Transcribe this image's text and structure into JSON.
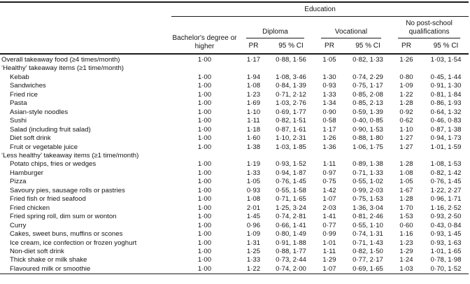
{
  "table": {
    "spanner": "Education",
    "col_groups": [
      {
        "label": "Bachelor's degree or higher"
      },
      {
        "label": "Diploma",
        "sub": [
          "PR",
          "95 % CI"
        ]
      },
      {
        "label": "Vocational",
        "sub": [
          "PR",
          "95 % CI"
        ]
      },
      {
        "label": "No post-school qualifications",
        "sub": [
          "PR",
          "95 % CI"
        ]
      }
    ],
    "rows": [
      {
        "label": "Overall takeaway food (≥4 times/month)",
        "indent": 0,
        "section": false,
        "cells": [
          "1·00",
          "1·17",
          "0·88, 1·56",
          "1·05",
          "0·82, 1·33",
          "1·26",
          "1·03, 1·54"
        ]
      },
      {
        "label": "‘Healthy’ takeaway items (≥1 time/month)",
        "indent": 0,
        "section": true,
        "cells": []
      },
      {
        "label": "Kebab",
        "indent": 1,
        "section": false,
        "cells": [
          "1·00",
          "1·94",
          "1·08, 3·46",
          "1·30",
          "0·74, 2·29",
          "0·80",
          "0·45, 1·44"
        ]
      },
      {
        "label": "Sandwiches",
        "indent": 1,
        "section": false,
        "cells": [
          "1·00",
          "1·08",
          "0·84, 1·39",
          "0·93",
          "0·75, 1·17",
          "1·09",
          "0·91, 1·30"
        ]
      },
      {
        "label": "Fried rice",
        "indent": 1,
        "section": false,
        "cells": [
          "1·00",
          "1·23",
          "0·71, 2·12",
          "1·33",
          "0·85, 2·08",
          "1·22",
          "0·81, 1·84"
        ]
      },
      {
        "label": "Pasta",
        "indent": 1,
        "section": false,
        "cells": [
          "1·00",
          "1·69",
          "1·03, 2·76",
          "1·34",
          "0·85, 2·13",
          "1·28",
          "0·86, 1·93"
        ]
      },
      {
        "label": "Asian-style noodles",
        "indent": 1,
        "section": false,
        "cells": [
          "1·00",
          "1·10",
          "0·69, 1·77",
          "0·90",
          "0·59, 1·39",
          "0·92",
          "0·64, 1·32"
        ]
      },
      {
        "label": "Sushi",
        "indent": 1,
        "section": false,
        "cells": [
          "1·00",
          "1·11",
          "0·82, 1·51",
          "0·58",
          "0·40, 0·85",
          "0·62",
          "0·46, 0·83"
        ]
      },
      {
        "label": "Salad (including fruit salad)",
        "indent": 1,
        "section": false,
        "cells": [
          "1·00",
          "1·18",
          "0·87, 1·61",
          "1·17",
          "0·90, 1·53",
          "1·10",
          "0·87, 1·38"
        ]
      },
      {
        "label": "Diet soft drink",
        "indent": 1,
        "section": false,
        "cells": [
          "1·00",
          "1·60",
          "1·10, 2·31",
          "1·26",
          "0·88, 1·80",
          "1·27",
          "0·94, 1·73"
        ]
      },
      {
        "label": "Fruit or vegetable juice",
        "indent": 1,
        "section": false,
        "cells": [
          "1·00",
          "1·38",
          "1·03, 1·85",
          "1·36",
          "1·06, 1·75",
          "1·27",
          "1·01, 1·59"
        ]
      },
      {
        "label": "‘Less healthy’ takeaway items (≥1 time/month)",
        "indent": 0,
        "section": true,
        "cells": []
      },
      {
        "label": "Potato chips, fries or wedges",
        "indent": 1,
        "section": false,
        "cells": [
          "1·00",
          "1·19",
          "0·93, 1·52",
          "1·11",
          "0·89, 1·38",
          "1·28",
          "1·08, 1·53"
        ]
      },
      {
        "label": "Hamburger",
        "indent": 1,
        "section": false,
        "cells": [
          "1·00",
          "1·33",
          "0·94, 1·87",
          "0·97",
          "0·71, 1·33",
          "1·08",
          "0·82, 1·42"
        ]
      },
      {
        "label": "Pizza",
        "indent": 1,
        "section": false,
        "cells": [
          "1·00",
          "1·05",
          "0·76, 1·45",
          "0·75",
          "0·55, 1·02",
          "1·05",
          "0·76, 1·45"
        ]
      },
      {
        "label": "Savoury pies, sausage rolls or pastries",
        "indent": 1,
        "section": false,
        "cells": [
          "1·00",
          "0·93",
          "0·55, 1·58",
          "1·42",
          "0·99, 2·03",
          "1·67",
          "1·22, 2·27"
        ]
      },
      {
        "label": "Fried fish or fried seafood",
        "indent": 1,
        "section": false,
        "cells": [
          "1·00",
          "1·08",
          "0·71, 1·65",
          "1·07",
          "0·75, 1·53",
          "1·28",
          "0·96, 1·71"
        ]
      },
      {
        "label": "Fried chicken",
        "indent": 1,
        "section": false,
        "cells": [
          "1·00",
          "2·01",
          "1·25, 3·24",
          "2·03",
          "1·36, 3·04",
          "1·70",
          "1·16, 2·52"
        ]
      },
      {
        "label": "Fried spring roll, dim sum or wonton",
        "indent": 1,
        "section": false,
        "cells": [
          "1·00",
          "1·45",
          "0·74, 2·81",
          "1·41",
          "0·81, 2·46",
          "1·53",
          "0·93, 2·50"
        ]
      },
      {
        "label": "Curry",
        "indent": 1,
        "section": false,
        "cells": [
          "1·00",
          "0·96",
          "0·66, 1·41",
          "0·77",
          "0·55, 1·10",
          "0·60",
          "0·43, 0·84"
        ]
      },
      {
        "label": "Cakes, sweet buns, muffins or scones",
        "indent": 1,
        "section": false,
        "cells": [
          "1·00",
          "1·09",
          "0·80, 1·49",
          "0·99",
          "0·74, 1·31",
          "1·16",
          "0·93, 1·45"
        ]
      },
      {
        "label": "Ice cream, ice confection or frozen yoghurt",
        "indent": 1,
        "section": false,
        "cells": [
          "1·00",
          "1·31",
          "0·91, 1·88",
          "1·01",
          "0·71, 1·43",
          "1·23",
          "0·93, 1·63"
        ]
      },
      {
        "label": "Non-diet soft drink",
        "indent": 1,
        "section": false,
        "cells": [
          "1·00",
          "1·25",
          "0·88, 1·77",
          "1·11",
          "0·82, 1·50",
          "1·29",
          "1·01, 1·65"
        ]
      },
      {
        "label": "Thick shake or milk shake",
        "indent": 1,
        "section": false,
        "cells": [
          "1·00",
          "1·33",
          "0·73, 2·44",
          "1·29",
          "0·77, 2·17",
          "1·24",
          "0·78, 1·98"
        ]
      },
      {
        "label": "Flavoured milk or smoothie",
        "indent": 1,
        "section": false,
        "cells": [
          "1·00",
          "1·22",
          "0·74, 2·00",
          "1·07",
          "0·69, 1·65",
          "1·03",
          "0·70, 1·52"
        ]
      }
    ]
  }
}
